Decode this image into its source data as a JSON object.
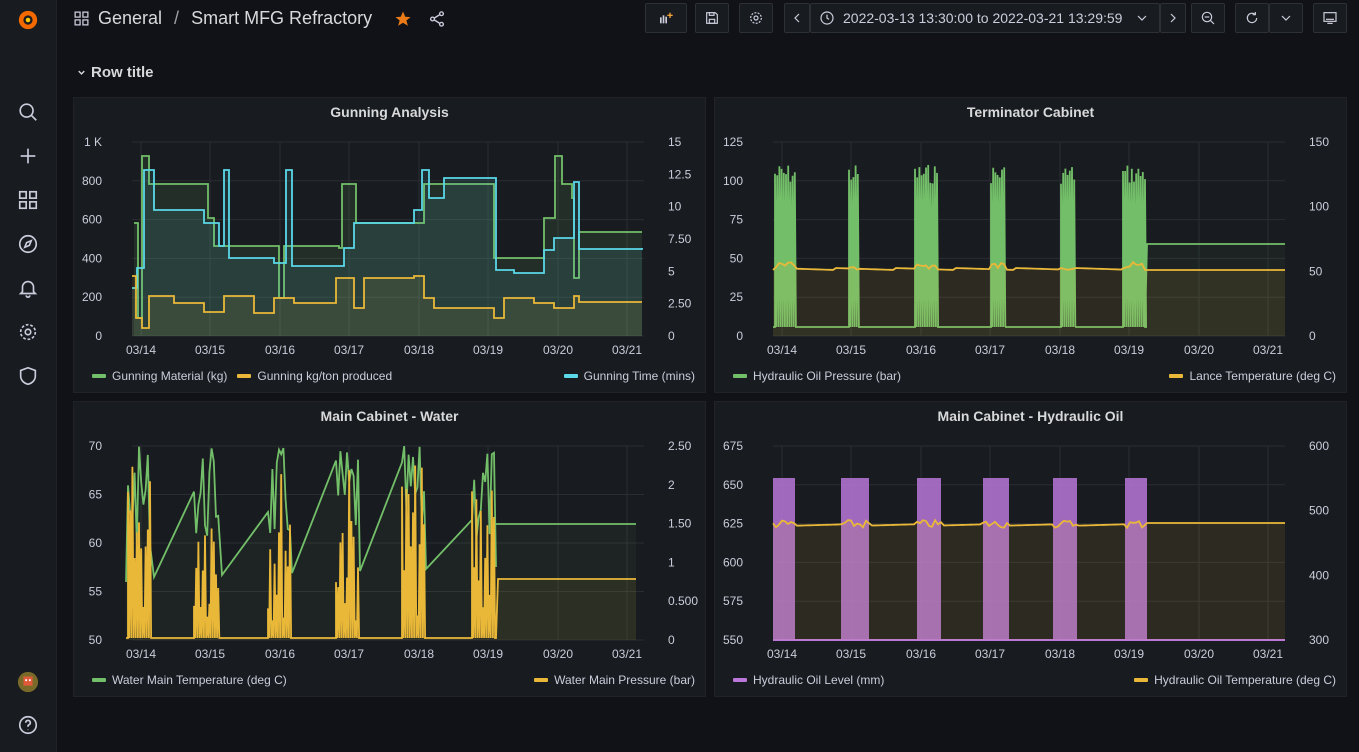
{
  "breadcrumb": {
    "folder": "General",
    "separator": "/",
    "dashboard": "Smart MFG Refractory"
  },
  "time_range": {
    "label": "2022-03-13 13:30:00 to 2022-03-21 13:29:59"
  },
  "row": {
    "title": "Row title"
  },
  "colors": {
    "green": "#73bf69",
    "yellow": "#fade2a",
    "orange": "#f2c94c",
    "cyan": "#5ad8e8",
    "purple": "#b877d9",
    "gold": "#eab839"
  },
  "x_ticks": [
    "03/14",
    "03/15",
    "03/16",
    "03/17",
    "03/18",
    "03/19",
    "03/20",
    "03/21"
  ],
  "panels": {
    "gunning": {
      "title": "Gunning Analysis",
      "left_ticks": [
        "0",
        "200",
        "400",
        "600",
        "800",
        "1 K"
      ],
      "right_ticks": [
        "0",
        "2.50",
        "5",
        "7.50",
        "10",
        "12.5",
        "15"
      ],
      "legend": [
        "Gunning Material (kg)",
        "Gunning kg/ton produced",
        "Gunning Time (mins)"
      ]
    },
    "terminator": {
      "title": "Terminator Cabinet",
      "left_ticks": [
        "0",
        "25",
        "50",
        "75",
        "100",
        "125"
      ],
      "right_ticks": [
        "0",
        "50",
        "100",
        "150"
      ],
      "legend": [
        "Hydraulic Oil Pressure (bar)",
        "Lance Temperature (deg C)"
      ]
    },
    "water": {
      "title": "Main Cabinet - Water",
      "left_ticks": [
        "50",
        "55",
        "60",
        "65",
        "70"
      ],
      "right_ticks": [
        "0",
        "0.500",
        "1",
        "1.50",
        "2",
        "2.50"
      ],
      "legend": [
        "Water Main Temperature (deg C)",
        "Water Main Pressure (bar)"
      ]
    },
    "hydraulic": {
      "title": "Main Cabinet - Hydraulic Oil",
      "left_ticks": [
        "550",
        "575",
        "600",
        "625",
        "650",
        "675"
      ],
      "right_ticks": [
        "300",
        "400",
        "500",
        "600"
      ],
      "legend": [
        "Hydraulic Oil Level (mm)",
        "Hydraulic Oil Temperature (deg C)"
      ]
    }
  }
}
